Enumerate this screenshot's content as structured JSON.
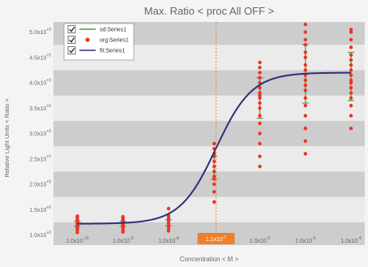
{
  "chart_data": {
    "type": "scatter",
    "title": "Max. Ratio < proc All OFF >",
    "xlabel": "Concentration < M >",
    "ylabel": "Relative Light Units < Ratio >",
    "x_scale": "log",
    "xlim": [
      3e-11,
      0.0002
    ],
    "ylim": [
      0.8,
      5.2
    ],
    "x_ticks": [
      {
        "value": 1e-10,
        "mantissa": "1.0x10",
        "exp": "-10"
      },
      {
        "value": 1e-09,
        "mantissa": "1.0x10",
        "exp": "-9"
      },
      {
        "value": 1e-08,
        "mantissa": "1.0x10",
        "exp": "-8"
      },
      {
        "value": 1e-07,
        "mantissa": "1.0x10",
        "exp": "-7"
      },
      {
        "value": 1e-06,
        "mantissa": "1.0x10",
        "exp": "-6"
      },
      {
        "value": 1e-05,
        "mantissa": "1.0x10",
        "exp": "-5"
      },
      {
        "value": 0.0001,
        "mantissa": "1.0x10",
        "exp": "-4"
      }
    ],
    "y_ticks": [
      {
        "value": 1.0,
        "mantissa": "1.0x10",
        "exp": "+0"
      },
      {
        "value": 1.5,
        "mantissa": "1.5x10",
        "exp": "+0"
      },
      {
        "value": 2.0,
        "mantissa": "2.0x10",
        "exp": "+0"
      },
      {
        "value": 2.5,
        "mantissa": "2.5x10",
        "exp": "+0"
      },
      {
        "value": 3.0,
        "mantissa": "3.0x10",
        "exp": "+0"
      },
      {
        "value": 3.5,
        "mantissa": "3.5x10",
        "exp": "+0"
      },
      {
        "value": 4.0,
        "mantissa": "4.0x10",
        "exp": "+0"
      },
      {
        "value": 4.5,
        "mantissa": "4.5x10",
        "exp": "+0"
      },
      {
        "value": 5.0,
        "mantissa": "5.0x10",
        "exp": "+0"
      }
    ],
    "grid": "alternating horizontal bands",
    "legend": {
      "placement": "top-left",
      "entries": [
        {
          "checked": true,
          "label": "sd:Series1",
          "style": "line",
          "color": "#4d9b3a"
        },
        {
          "checked": true,
          "label": "org:Series1",
          "style": "marker",
          "color": "#ee3322"
        },
        {
          "checked": true,
          "label": "fit:Series1",
          "style": "line",
          "color": "#2c2f7a"
        }
      ]
    },
    "colors": {
      "band_dark": "#cdcdcd",
      "band_light": "#ebebeb",
      "points": "#ee3322",
      "fit": "#2c2f7a",
      "sd": "#4d9b3a",
      "ec50_line": "#f07f2a"
    },
    "series": [
      {
        "name": "org:Series1",
        "style": "points",
        "groups": [
          {
            "x": 1e-10,
            "y": [
              1.05,
              1.1,
              1.13,
              1.16,
              1.19,
              1.22,
              1.25,
              1.28,
              1.31,
              1.34,
              1.37
            ]
          },
          {
            "x": 1e-09,
            "y": [
              1.06,
              1.1,
              1.14,
              1.18,
              1.21,
              1.24,
              1.27,
              1.3,
              1.33,
              1.36
            ]
          },
          {
            "x": 1e-08,
            "y": [
              1.08,
              1.13,
              1.18,
              1.22,
              1.26,
              1.3,
              1.34,
              1.38,
              1.52
            ]
          },
          {
            "x": 1e-07,
            "y": [
              1.65,
              1.85,
              2.0,
              2.1,
              2.15,
              2.25,
              2.35,
              2.45,
              2.55,
              2.6,
              2.7,
              2.8
            ]
          },
          {
            "x": 1e-06,
            "y": [
              2.35,
              2.55,
              2.8,
              3.0,
              3.2,
              3.35,
              3.5,
              3.6,
              3.7,
              3.75,
              3.8,
              3.9,
              4.0,
              4.1,
              4.2,
              4.3,
              4.4
            ]
          },
          {
            "x": 1e-05,
            "y": [
              2.6,
              2.85,
              3.1,
              3.35,
              3.55,
              3.7,
              3.85,
              3.95,
              4.05,
              4.15,
              4.25,
              4.35,
              4.5,
              4.6,
              4.75,
              4.85,
              5.0,
              5.15
            ]
          },
          {
            "x": 0.0001,
            "y": [
              3.1,
              3.35,
              3.55,
              3.7,
              3.8,
              3.9,
              4.0,
              4.05,
              4.15,
              4.25,
              4.35,
              4.45,
              4.55,
              4.7,
              4.85,
              5.0,
              5.05
            ]
          }
        ]
      },
      {
        "name": "sd:Series1",
        "style": "error-bars",
        "bars": [
          {
            "x": 1e-10,
            "low": 1.17,
            "high": 1.27
          },
          {
            "x": 1e-09,
            "low": 1.17,
            "high": 1.27
          },
          {
            "x": 1e-08,
            "low": 1.18,
            "high": 1.3
          },
          {
            "x": 1e-07,
            "low": 2.1,
            "high": 2.55
          },
          {
            "x": 1e-06,
            "low": 3.3,
            "high": 4.1
          },
          {
            "x": 1e-05,
            "low": 3.6,
            "high": 4.75
          },
          {
            "x": 0.0001,
            "low": 3.65,
            "high": 4.6
          }
        ]
      },
      {
        "name": "fit:Series1",
        "style": "curve",
        "model": "four-parameter logistic",
        "bottom": 1.22,
        "top": 4.2,
        "ec50": 1.1e-07,
        "hill": 1.1
      }
    ],
    "annotation": {
      "x": 1.1e-07,
      "label": "1.1x10",
      "exp": "-7"
    }
  }
}
